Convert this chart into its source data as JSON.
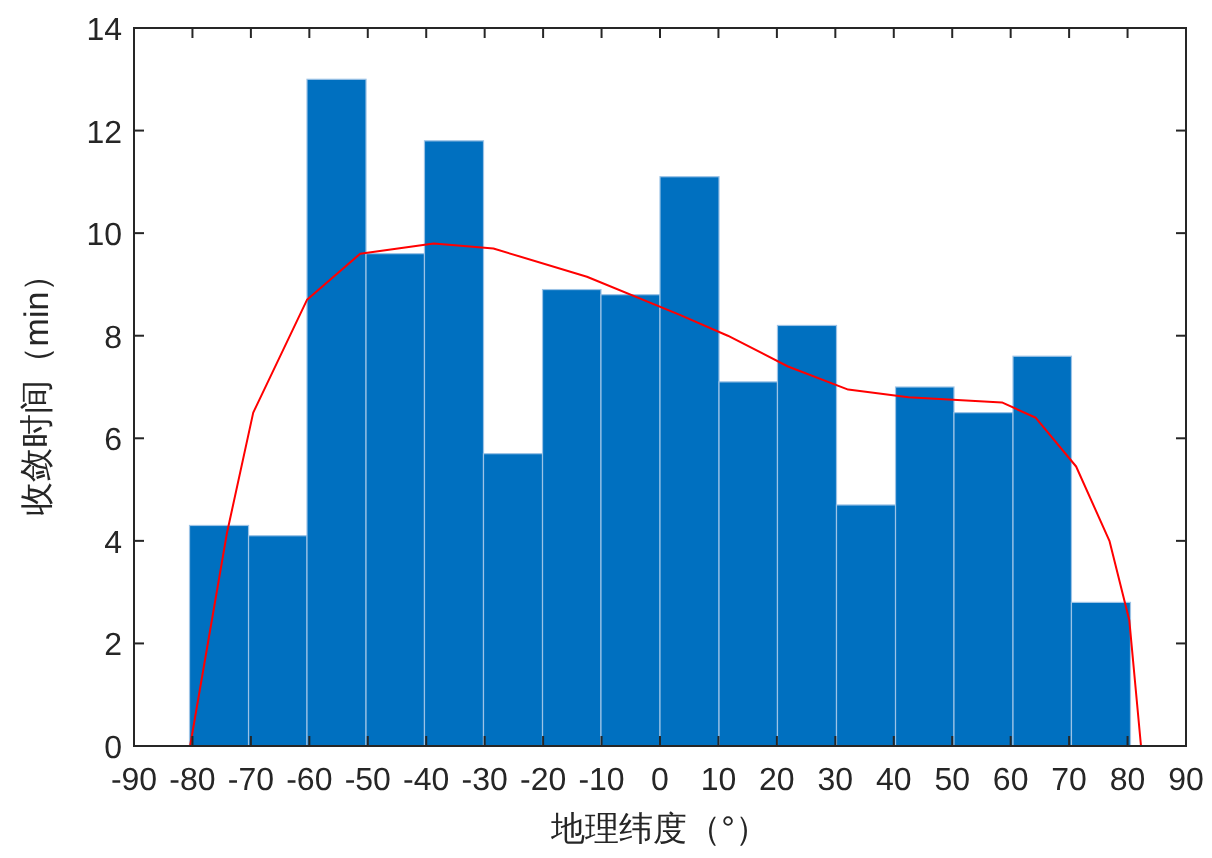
{
  "chart_data": {
    "type": "histogram",
    "xlabel": "地理纬度（°）",
    "ylabel": "收敛时间（min）",
    "bins": [
      -80.5,
      -70.4,
      -60.4,
      -50.3,
      -40.3,
      -30.2,
      -20.1,
      -10.1,
      0,
      10.1,
      20.1,
      30.2,
      40.3,
      50.3,
      60.4,
      70.4,
      80.5
    ],
    "values": [
      4.3,
      4.1,
      13.0,
      9.6,
      11.8,
      5.7,
      8.9,
      8.8,
      11.1,
      7.1,
      8.2,
      4.7,
      7.0,
      6.5,
      7.6,
      2.8
    ],
    "color": "#0070c0",
    "series": [
      {
        "type": "line",
        "color": "#ff0000",
        "x": [
          -80.4,
          -74.1,
          -69.6,
          -60.4,
          -51.3,
          -38.7,
          -28.5,
          -12.5,
          3.5,
          11.6,
          21.9,
          32.2,
          42.5,
          58.5,
          64.3,
          71.2,
          76.9,
          80.3,
          82.3
        ],
        "values": [
          0,
          4.15,
          6.5,
          8.7,
          9.6,
          9.8,
          9.7,
          9.15,
          8.4,
          8.0,
          7.4,
          6.95,
          6.8,
          6.7,
          6.4,
          5.45,
          4.0,
          2.45,
          0
        ]
      }
    ],
    "xlim": [
      -90,
      90
    ],
    "xticks": [
      -90,
      -80,
      -70,
      -60,
      -50,
      -40,
      -30,
      -20,
      -10,
      0,
      10,
      20,
      30,
      40,
      50,
      60,
      70,
      80,
      90
    ],
    "ylim": [
      0,
      14
    ],
    "yticks": [
      0,
      2,
      4,
      6,
      8,
      10,
      12,
      14
    ],
    "grid": false
  }
}
